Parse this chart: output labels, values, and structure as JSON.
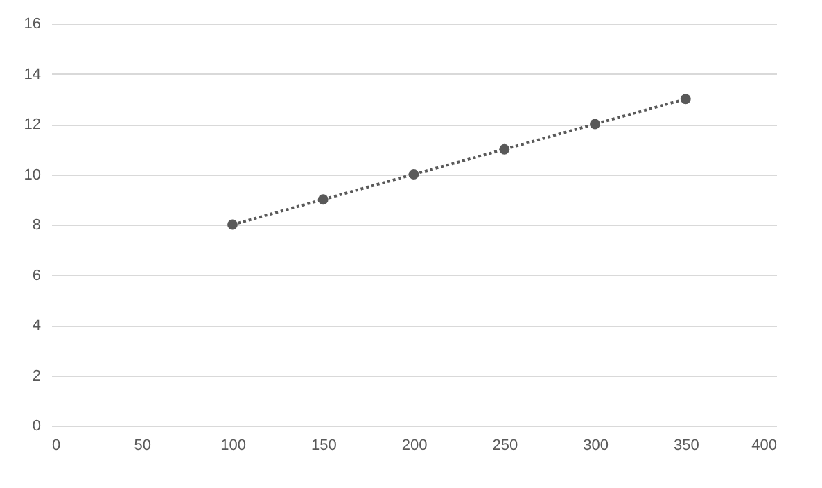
{
  "chart_data": {
    "type": "line",
    "x": [
      100,
      150,
      200,
      250,
      300,
      350
    ],
    "series": [
      {
        "color": "#595959",
        "values": [
          8,
          9,
          10,
          11,
          12,
          13
        ]
      }
    ],
    "xlim": [
      0,
      400
    ],
    "xticks": [
      0,
      50,
      100,
      150,
      200,
      250,
      300,
      350,
      400
    ],
    "ylim": [
      0,
      16
    ],
    "yticks": [
      0,
      2,
      4,
      6,
      8,
      10,
      12,
      14,
      16
    ],
    "grid": "y",
    "marker": "circle",
    "line_style": "dotted"
  }
}
